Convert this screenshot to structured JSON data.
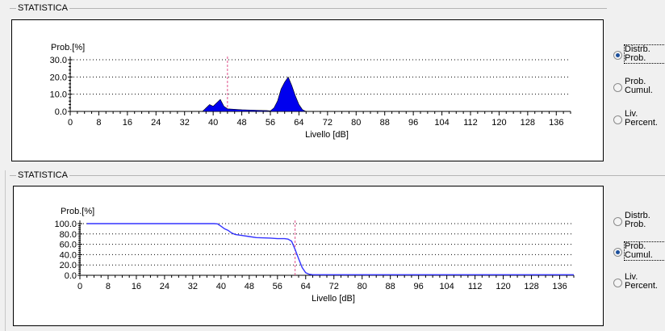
{
  "top": {
    "group_title": "STATISTICA",
    "y_label": "Prob.[%]",
    "x_label": "Livello [dB]",
    "y_ticks": [
      "30.0",
      "20.0",
      "10.0",
      "0.0"
    ],
    "x_ticks": [
      "0",
      "8",
      "16",
      "24",
      "32",
      "40",
      "48",
      "56",
      "64",
      "72",
      "80",
      "88",
      "96",
      "104",
      "112",
      "120",
      "128",
      "136"
    ],
    "radios": [
      {
        "line1": "Distrb.",
        "line2": "Prob.",
        "checked": true
      },
      {
        "line1": "Prob.",
        "line2": "Cumul.",
        "checked": false
      },
      {
        "line1": "Liv.",
        "line2": "Percent.",
        "checked": false
      }
    ]
  },
  "bottom": {
    "group_title": "STATISTICA",
    "y_label": "Prob.[%]",
    "x_label": "Livello [dB]",
    "y_ticks": [
      "100.0",
      "80.0",
      "60.0",
      "40.0",
      "20.0",
      "0.0"
    ],
    "x_ticks": [
      "0",
      "8",
      "16",
      "24",
      "32",
      "40",
      "48",
      "56",
      "64",
      "72",
      "80",
      "88",
      "96",
      "104",
      "112",
      "120",
      "128",
      "136"
    ],
    "radios": [
      {
        "line1": "Distrb.",
        "line2": "Prob.",
        "checked": false
      },
      {
        "line1": "Prob.",
        "line2": "Cumul.",
        "checked": true
      },
      {
        "line1": "Liv.",
        "line2": "Percent.",
        "checked": false
      }
    ]
  },
  "colors": {
    "fill": "#0000ee",
    "line": "#3333ff",
    "marker": "#e0508a",
    "grid": "#000000"
  },
  "chart_data": [
    {
      "type": "area",
      "xlabel": "Livello [dB]",
      "ylabel": "Prob.[%]",
      "xlim": [
        0,
        140
      ],
      "ylim": [
        0,
        30
      ],
      "grid": true,
      "marker_x": 44,
      "x": [
        37,
        38,
        39,
        40,
        41,
        42,
        43,
        44,
        48,
        52,
        55,
        56,
        57,
        58,
        59,
        60,
        61,
        62,
        63,
        64,
        65,
        66
      ],
      "values": [
        0,
        2,
        4,
        3,
        5,
        7,
        3,
        1.5,
        1,
        0.7,
        0.5,
        0.3,
        2,
        6,
        13,
        17,
        20,
        15,
        9,
        4,
        1,
        0
      ]
    },
    {
      "type": "line",
      "xlabel": "Livello [dB]",
      "ylabel": "Prob.[%]",
      "xlim": [
        0,
        140
      ],
      "ylim": [
        0,
        100
      ],
      "grid": true,
      "marker_x": 61,
      "x": [
        2,
        10,
        20,
        30,
        38,
        39,
        40,
        41,
        42,
        43,
        44,
        46,
        48,
        50,
        54,
        56,
        58,
        59,
        60,
        61,
        62,
        63,
        64,
        65,
        66,
        70,
        80,
        100,
        120,
        140
      ],
      "values": [
        100,
        100,
        100,
        100,
        100,
        99.5,
        95,
        90,
        87,
        82,
        79,
        77,
        75,
        73,
        72,
        71,
        71,
        70,
        66,
        50,
        32,
        15,
        5,
        2,
        1,
        1,
        1,
        1,
        1,
        1
      ]
    }
  ]
}
